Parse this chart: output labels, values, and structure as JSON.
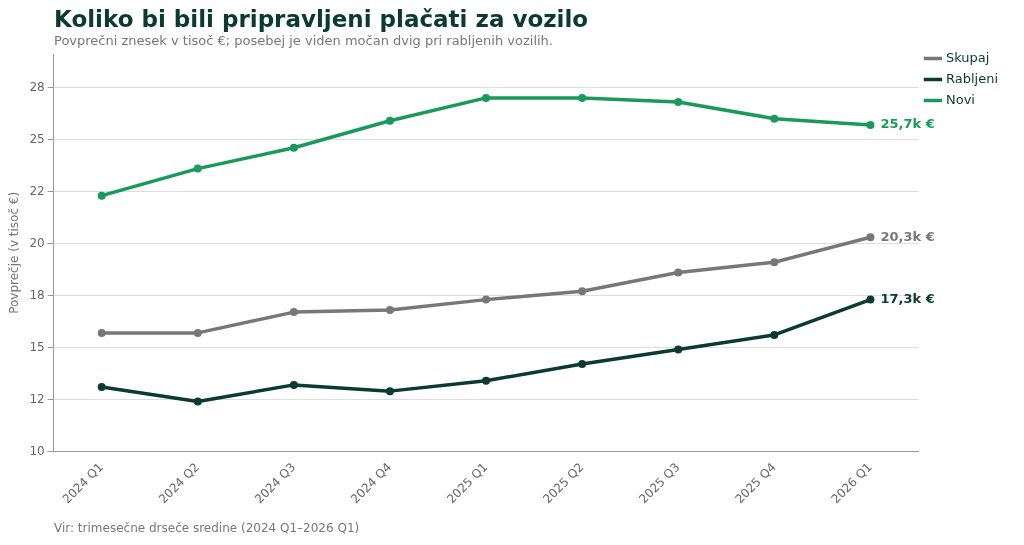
{
  "chart_data": {
    "type": "line",
    "title": "Koliko bi bili pripravljeni plačati za vozilo",
    "subtitle": "Povprečni znesek v tisoč €; posebej je viden močan dvig pri rabljenih vozilih.",
    "ylabel": "Povprečje (v tisoč €)",
    "categories": [
      "2024 Q1",
      "2024 Q2",
      "2024 Q3",
      "2024 Q4",
      "2025 Q1",
      "2025 Q2",
      "2025 Q3",
      "2025 Q4",
      "2026 Q1"
    ],
    "series": [
      {
        "name": "Skupaj",
        "color": "#777777",
        "values": [
          15.7,
          15.7,
          16.7,
          16.8,
          17.3,
          17.7,
          18.6,
          19.1,
          20.3
        ]
      },
      {
        "name": "Rabljeni",
        "color": "#0b3a2f",
        "values": [
          13.1,
          12.4,
          13.2,
          12.9,
          13.4,
          14.2,
          14.9,
          15.6,
          17.3
        ]
      },
      {
        "name": "Novi",
        "color": "#1a9a5a",
        "values": [
          22.3,
          23.6,
          24.6,
          25.9,
          27.0,
          27.0,
          26.8,
          26.0,
          25.7
        ]
      }
    ],
    "ylim": [
      10,
      29.1
    ],
    "yticks": [
      10,
      {
        "value": 12.5,
        "label": "12"
      },
      15,
      {
        "value": 17.5,
        "label": "18"
      },
      20,
      {
        "value": 22.5,
        "label": "22"
      },
      25,
      {
        "value": 27.5,
        "label": "28"
      }
    ],
    "grid": "y",
    "legend": "top right",
    "marker": "circle",
    "line_style": "solid",
    "annotations": [
      {
        "text": "20,3k €",
        "x": "2026 Q1",
        "y": 20.3
      },
      {
        "text": "17,3k €",
        "x": "2026 Q1",
        "y": 17.3
      },
      {
        "text": "25,7k €",
        "x": "2026 Q1",
        "y": 25.7
      },
      "Vir: trimesečne drseče sredine (2024 Q1–2026 Q1)"
    ]
  }
}
